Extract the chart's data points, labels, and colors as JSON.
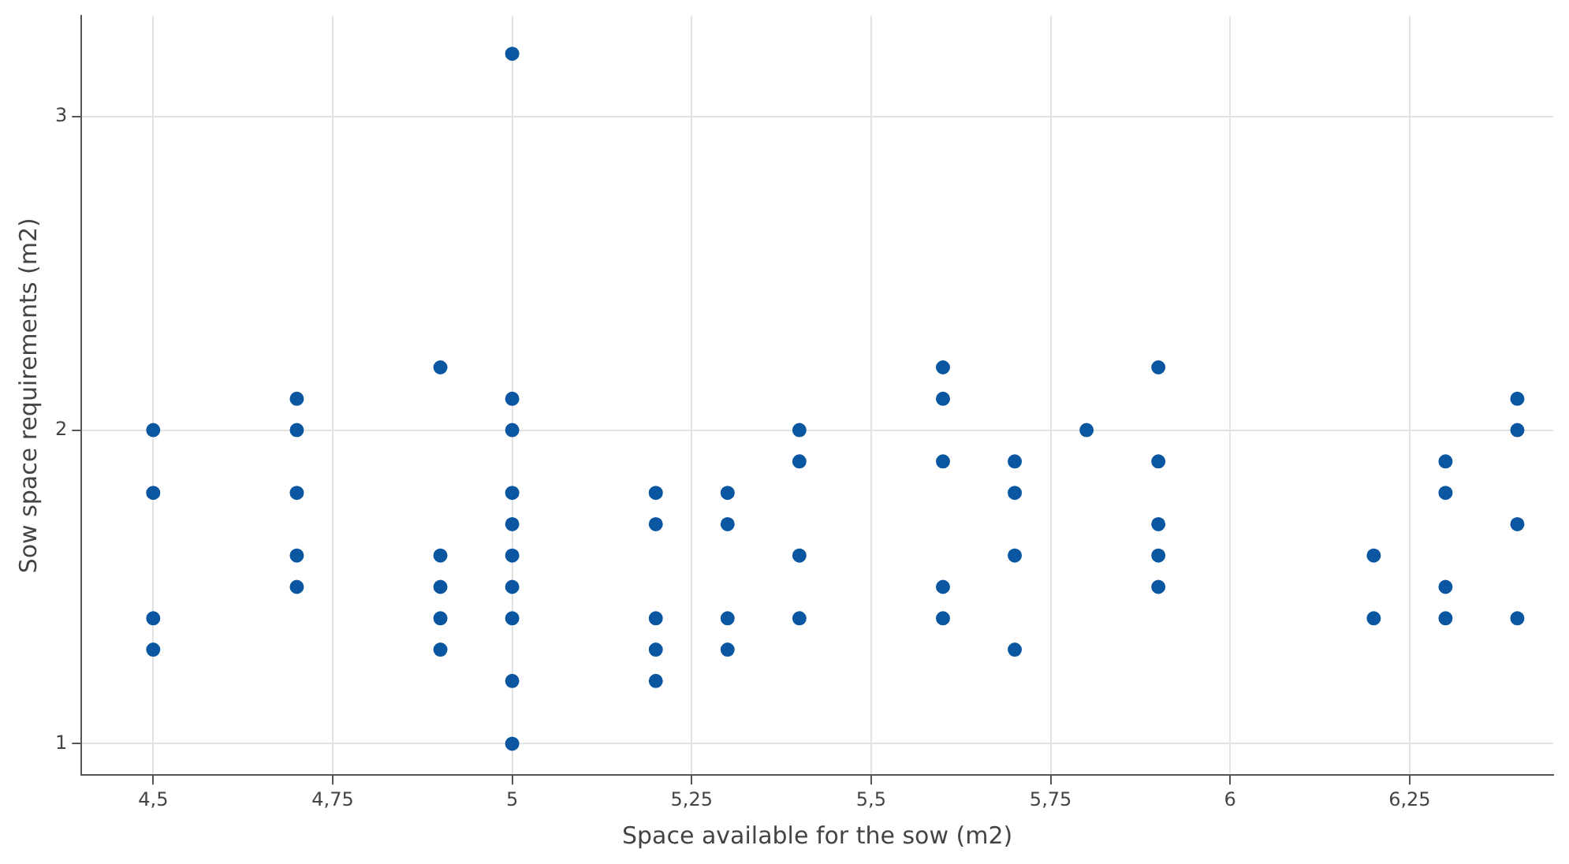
{
  "chart_data": {
    "type": "scatter",
    "xlabel": "Space available for the sow (m2)",
    "ylabel": "Sow space requirements (m2)",
    "x": [
      4.5,
      4.5,
      4.5,
      4.5,
      4.7,
      4.7,
      4.7,
      4.7,
      4.7,
      4.9,
      4.9,
      4.9,
      4.9,
      4.9,
      5,
      5,
      5,
      5,
      5,
      5,
      5,
      5,
      5,
      5,
      5.2,
      5.2,
      5.2,
      5.2,
      5.2,
      5.3,
      5.3,
      5.3,
      5.3,
      5.4,
      5.4,
      5.4,
      5.4,
      5.6,
      5.6,
      5.6,
      5.6,
      5.6,
      5.7,
      5.7,
      5.7,
      5.7,
      5.8,
      5.9,
      5.9,
      5.9,
      5.9,
      5.9,
      6.2,
      6.2,
      6.3,
      6.3,
      6.3,
      6.3,
      6.4,
      6.4,
      6.4,
      6.4
    ],
    "series": [
      {
        "color": "#0b56a0",
        "values": [
          2.0,
          1.8,
          1.4,
          1.3,
          2.1,
          2.0,
          1.8,
          1.6,
          1.5,
          2.2,
          1.6,
          1.5,
          1.4,
          1.3,
          3.2,
          2.1,
          2.0,
          1.8,
          1.7,
          1.6,
          1.5,
          1.4,
          1.2,
          1.0,
          1.8,
          1.7,
          1.4,
          1.3,
          1.2,
          1.8,
          1.7,
          1.4,
          1.3,
          2.0,
          1.9,
          1.6,
          1.4,
          2.2,
          2.1,
          1.9,
          1.5,
          1.4,
          1.9,
          1.8,
          1.6,
          1.3,
          2.0,
          2.2,
          1.9,
          1.7,
          1.6,
          1.5,
          1.6,
          1.4,
          1.9,
          1.8,
          1.5,
          1.4,
          2.1,
          2.0,
          1.7,
          1.4
        ]
      }
    ],
    "xlim": [
      4.4,
      6.45
    ],
    "ylim": [
      0.9,
      3.32
    ],
    "xticks": [
      {
        "value": 4.5,
        "label": "4,5"
      },
      {
        "value": 4.75,
        "label": "4,75"
      },
      5,
      {
        "value": 5.25,
        "label": "5,25"
      },
      {
        "value": 5.5,
        "label": "5,5"
      },
      {
        "value": 5.75,
        "label": "5,75"
      },
      6,
      {
        "value": 6.25,
        "label": "6,25"
      }
    ],
    "yticks": [
      1,
      2,
      3
    ],
    "grid": true,
    "legend": false,
    "marker": "circle"
  }
}
